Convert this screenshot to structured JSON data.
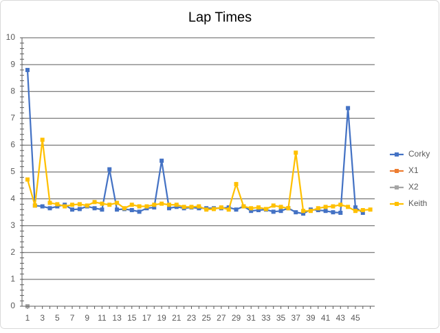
{
  "chart_data": {
    "type": "line",
    "title": "Lap Times",
    "categories": [
      1,
      null,
      3,
      null,
      5,
      null,
      7,
      null,
      9,
      null,
      11,
      null,
      13,
      null,
      15,
      null,
      17,
      null,
      19,
      null,
      21,
      null,
      23,
      null,
      25,
      null,
      27,
      null,
      29,
      null,
      31,
      null,
      33,
      null,
      35,
      null,
      37,
      null,
      39,
      null,
      41,
      null,
      43,
      null,
      45,
      null,
      null
    ],
    "series": [
      {
        "name": "Corky",
        "color": "#4472c4",
        "values": [
          8.8,
          3.75,
          3.72,
          3.65,
          3.72,
          3.78,
          3.6,
          3.62,
          3.72,
          3.65,
          3.6,
          5.1,
          3.6,
          3.62,
          3.58,
          3.52,
          3.65,
          3.68,
          5.42,
          3.65,
          3.7,
          3.65,
          3.68,
          3.65,
          3.65,
          3.65,
          3.65,
          3.68,
          3.6,
          3.72,
          3.55,
          3.58,
          3.6,
          3.52,
          3.55,
          3.65,
          3.5,
          3.45,
          3.6,
          3.58,
          3.55,
          3.5,
          3.48,
          7.38,
          3.68,
          3.48,
          null
        ]
      },
      {
        "name": "X1",
        "color": "#ed7d31",
        "values": [
          0,
          null,
          null,
          null,
          null,
          null,
          null,
          null,
          null,
          null,
          null,
          null,
          null,
          null,
          null,
          null,
          null,
          null,
          null,
          null,
          null,
          null,
          null,
          null,
          null,
          null,
          null,
          null,
          null,
          null,
          null,
          null,
          null,
          null,
          null,
          null,
          null,
          null,
          null,
          null,
          null,
          null,
          null,
          null,
          null,
          null,
          null
        ]
      },
      {
        "name": "X2",
        "color": "#a5a5a5",
        "values": [
          0,
          null,
          null,
          null,
          null,
          null,
          null,
          null,
          null,
          null,
          null,
          null,
          null,
          null,
          null,
          null,
          null,
          null,
          null,
          null,
          null,
          null,
          null,
          null,
          null,
          null,
          null,
          null,
          null,
          null,
          null,
          null,
          null,
          null,
          null,
          null,
          null,
          null,
          null,
          null,
          null,
          null,
          null,
          null,
          null,
          null,
          null
        ]
      },
      {
        "name": "Keith",
        "color": "#ffc000",
        "values": [
          4.72,
          3.75,
          6.2,
          3.85,
          3.8,
          3.72,
          3.78,
          3.8,
          3.75,
          3.88,
          3.82,
          3.78,
          3.85,
          3.65,
          3.78,
          3.72,
          3.72,
          3.78,
          3.82,
          3.78,
          3.78,
          3.7,
          3.7,
          3.72,
          3.6,
          3.62,
          3.68,
          3.6,
          4.55,
          3.72,
          3.65,
          3.68,
          3.62,
          3.75,
          3.7,
          3.65,
          5.72,
          3.55,
          3.55,
          3.65,
          3.7,
          3.72,
          3.78,
          3.7,
          3.55,
          3.58,
          3.6
        ]
      }
    ],
    "ylim": [
      0,
      10
    ],
    "yticks": [
      0,
      1,
      2,
      3,
      4,
      5,
      6,
      7,
      8,
      9,
      10
    ],
    "grid": true,
    "legend": "right"
  }
}
